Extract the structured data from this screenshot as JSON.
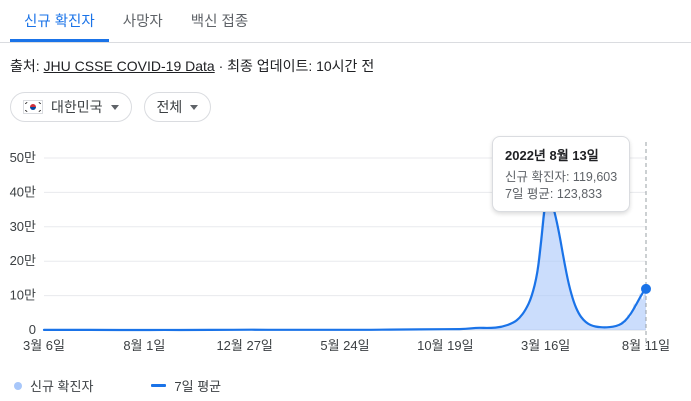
{
  "tabs": [
    {
      "label": "신규 확진자",
      "active": true
    },
    {
      "label": "사망자",
      "active": false
    },
    {
      "label": "백신 접종",
      "active": false
    }
  ],
  "source": {
    "prefix": "출처: ",
    "link": "JHU CSSE COVID-19 Data",
    "suffix": " · 최종 업데이트: 10시간 전"
  },
  "filters": {
    "region": {
      "label": "대한민국",
      "flag": "south-korea-flag"
    },
    "metric": {
      "label": "전체"
    }
  },
  "tooltip": {
    "title": "2022년 8월 13일",
    "line1": "신규 확진자: 119,603",
    "line2": "7일 평균: 123,833"
  },
  "legend": [
    {
      "label": "신규 확진자",
      "type": "dot",
      "color": "#a8c7fa"
    },
    {
      "label": "7일 평균",
      "type": "line",
      "color": "#1a73e8"
    }
  ],
  "chart_data": {
    "type": "area",
    "grid": true,
    "legend_position": "bottom",
    "ylim": [
      0,
      500000
    ],
    "y_ticks": [
      {
        "label": "0",
        "value": 0
      },
      {
        "label": "10만",
        "value": 100000
      },
      {
        "label": "20만",
        "value": 200000
      },
      {
        "label": "30만",
        "value": 300000
      },
      {
        "label": "40만",
        "value": 400000
      },
      {
        "label": "50만",
        "value": 500000
      }
    ],
    "x_tick_labels": [
      "3월 6일",
      "8월 1일",
      "12월 27일",
      "5월 24일",
      "10월 19일",
      "3월 16일",
      "8월 11일"
    ],
    "x_encoding": "fraction 0-1 across the date axis from first to last tick",
    "marker": {
      "x": 1.0,
      "value": 119603,
      "date": "2022년 8월 13일",
      "avg": 123833
    },
    "series": [
      {
        "name": "신규 확진자",
        "style": "area",
        "color": "#a8c7fa",
        "points": [
          [
            0.0,
            150
          ],
          [
            0.04,
            300
          ],
          [
            0.08,
            120
          ],
          [
            0.12,
            90
          ],
          [
            0.16,
            140
          ],
          [
            0.2,
            160
          ],
          [
            0.24,
            130
          ],
          [
            0.28,
            320
          ],
          [
            0.31,
            700
          ],
          [
            0.33,
            1050
          ],
          [
            0.35,
            620
          ],
          [
            0.38,
            480
          ],
          [
            0.42,
            560
          ],
          [
            0.46,
            640
          ],
          [
            0.5,
            580
          ],
          [
            0.54,
            510
          ],
          [
            0.58,
            1500
          ],
          [
            0.62,
            1850
          ],
          [
            0.65,
            2050
          ],
          [
            0.68,
            2600
          ],
          [
            0.7,
            3100
          ],
          [
            0.72,
            7200
          ],
          [
            0.74,
            5400
          ],
          [
            0.76,
            8600
          ],
          [
            0.78,
            23000
          ],
          [
            0.79,
            38000
          ],
          [
            0.8,
            62000
          ],
          [
            0.81,
            98000
          ],
          [
            0.818,
            170000
          ],
          [
            0.825,
            280000
          ],
          [
            0.83,
            380000
          ],
          [
            0.834,
            405000
          ],
          [
            0.838,
            392000
          ],
          [
            0.843,
            372000
          ],
          [
            0.85,
            330000
          ],
          [
            0.858,
            265000
          ],
          [
            0.866,
            185000
          ],
          [
            0.874,
            118000
          ],
          [
            0.882,
            72000
          ],
          [
            0.89,
            43000
          ],
          [
            0.898,
            26000
          ],
          [
            0.906,
            16000
          ],
          [
            0.914,
            10500
          ],
          [
            0.922,
            8200
          ],
          [
            0.93,
            7300
          ],
          [
            0.938,
            7800
          ],
          [
            0.944,
            9800
          ],
          [
            0.95,
            12500
          ],
          [
            0.954,
            9500
          ],
          [
            0.96,
            26000
          ],
          [
            0.964,
            19000
          ],
          [
            0.97,
            46000
          ],
          [
            0.974,
            36000
          ],
          [
            0.98,
            78000
          ],
          [
            0.984,
            64000
          ],
          [
            0.99,
            108000
          ],
          [
            0.994,
            88000
          ],
          [
            1.0,
            119603
          ]
        ]
      },
      {
        "name": "7일 평균",
        "style": "line",
        "color": "#1a73e8",
        "points": [
          [
            0.0,
            200
          ],
          [
            0.05,
            250
          ],
          [
            0.1,
            110
          ],
          [
            0.15,
            120
          ],
          [
            0.2,
            150
          ],
          [
            0.25,
            130
          ],
          [
            0.3,
            450
          ],
          [
            0.33,
            1000
          ],
          [
            0.36,
            650
          ],
          [
            0.4,
            500
          ],
          [
            0.45,
            600
          ],
          [
            0.5,
            570
          ],
          [
            0.55,
            520
          ],
          [
            0.6,
            1600
          ],
          [
            0.65,
            2000
          ],
          [
            0.68,
            2500
          ],
          [
            0.7,
            3000
          ],
          [
            0.72,
            7000
          ],
          [
            0.74,
            5500
          ],
          [
            0.76,
            8200
          ],
          [
            0.78,
            21000
          ],
          [
            0.79,
            35000
          ],
          [
            0.8,
            58000
          ],
          [
            0.81,
            95000
          ],
          [
            0.82,
            165000
          ],
          [
            0.826,
            260000
          ],
          [
            0.831,
            350000
          ],
          [
            0.836,
            395000
          ],
          [
            0.841,
            385000
          ],
          [
            0.848,
            345000
          ],
          [
            0.856,
            280000
          ],
          [
            0.864,
            200000
          ],
          [
            0.872,
            130000
          ],
          [
            0.88,
            80000
          ],
          [
            0.888,
            48000
          ],
          [
            0.896,
            29000
          ],
          [
            0.904,
            17500
          ],
          [
            0.912,
            11500
          ],
          [
            0.92,
            8800
          ],
          [
            0.93,
            7400
          ],
          [
            0.94,
            8200
          ],
          [
            0.95,
            11000
          ],
          [
            0.96,
            18000
          ],
          [
            0.97,
            35000
          ],
          [
            0.98,
            62000
          ],
          [
            0.99,
            95000
          ],
          [
            1.0,
            123833
          ]
        ]
      }
    ]
  }
}
